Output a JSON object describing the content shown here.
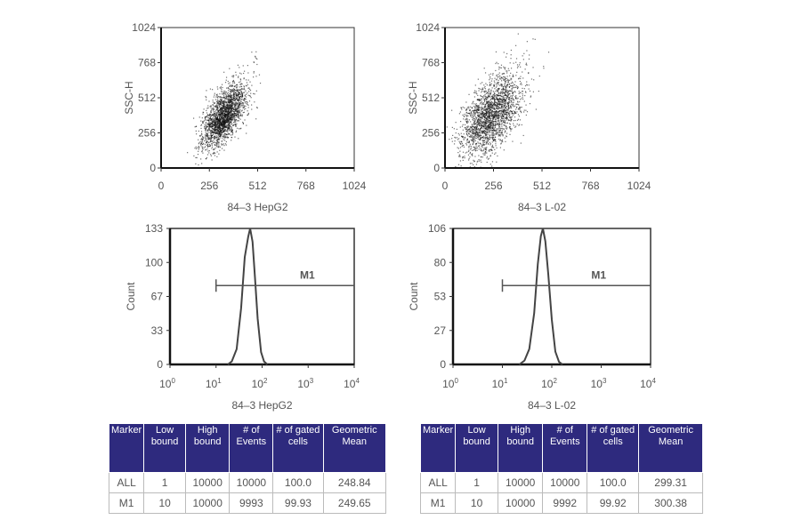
{
  "chart_data": [
    {
      "type": "scatter",
      "id": "scatter-hepg2",
      "xlabel": "84–3 HepG2",
      "ylabel": "SSC-H",
      "xlim": [
        0,
        1024
      ],
      "ylim": [
        0,
        1024
      ],
      "xticks": [
        "0",
        "256",
        "512",
        "768",
        "1024"
      ],
      "yticks": [
        "0",
        "256",
        "512",
        "768",
        "1024"
      ]
    },
    {
      "type": "scatter",
      "id": "scatter-l02",
      "xlabel": "84–3 L-02",
      "ylabel": "SSC-H",
      "xlim": [
        0,
        1024
      ],
      "ylim": [
        0,
        1024
      ],
      "xticks": [
        "0",
        "256",
        "512",
        "768",
        "1024"
      ],
      "yticks": [
        "0",
        "256",
        "512",
        "768",
        "1024"
      ]
    },
    {
      "type": "line",
      "id": "hist-hepg2",
      "xlabel": "84–3 HepG2",
      "ylabel": "Count",
      "xscale": "log",
      "xlim": [
        1,
        10000
      ],
      "ylim": [
        0,
        133
      ],
      "yticks": [
        "0",
        "33",
        "67",
        "100",
        "133"
      ],
      "xticks": [
        "10^0",
        "10^1",
        "10^2",
        "10^3",
        "10^4"
      ],
      "marker": {
        "label": "M1",
        "range": [
          10,
          10000
        ]
      },
      "x": [
        18,
        22,
        28,
        35,
        42,
        50,
        55,
        62,
        70,
        80,
        95,
        110,
        130
      ],
      "y": [
        0,
        3,
        15,
        55,
        105,
        125,
        133,
        120,
        85,
        45,
        12,
        3,
        0
      ]
    },
    {
      "type": "line",
      "id": "hist-l02",
      "xlabel": "84–3 L-02",
      "ylabel": "Count",
      "xscale": "log",
      "xlim": [
        1,
        10000
      ],
      "ylim": [
        0,
        106
      ],
      "yticks": [
        "0",
        "27",
        "53",
        "80",
        "106"
      ],
      "xticks": [
        "10^0",
        "10^1",
        "10^2",
        "10^3",
        "10^4"
      ],
      "marker": {
        "label": "M1",
        "range": [
          10,
          10000
        ]
      },
      "x": [
        22,
        28,
        35,
        44,
        52,
        60,
        66,
        74,
        85,
        100,
        118,
        140,
        165
      ],
      "y": [
        0,
        3,
        12,
        40,
        78,
        100,
        106,
        96,
        70,
        35,
        10,
        2,
        0
      ]
    }
  ],
  "tables": [
    {
      "headers": [
        "Marker",
        "Low bound",
        "High bound",
        "# of Events",
        "# of gated cells",
        "Geometric Mean"
      ],
      "rows": [
        [
          "ALL",
          "1",
          "10000",
          "10000",
          "100.0",
          "248.84"
        ],
        [
          "M1",
          "10",
          "10000",
          "9993",
          "99.93",
          "249.65"
        ]
      ]
    },
    {
      "headers": [
        "Marker",
        "Low bound",
        "High bound",
        "# of Events",
        "# of gated cells",
        "Geometric Mean"
      ],
      "rows": [
        [
          "ALL",
          "1",
          "10000",
          "10000",
          "100.0",
          "299.31"
        ],
        [
          "M1",
          "10",
          "10000",
          "9992",
          "99.92",
          "300.38"
        ]
      ]
    }
  ],
  "colors": {
    "header": "#2e2a7e",
    "points": "#111111"
  }
}
